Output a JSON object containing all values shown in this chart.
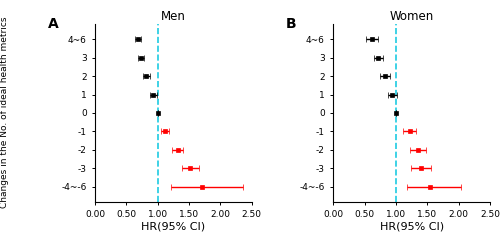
{
  "men": {
    "title": "Men",
    "label": "A",
    "y_positions": [
      4,
      3,
      2,
      1,
      0,
      -1,
      -2,
      -3,
      -4
    ],
    "hr": [
      0.68,
      0.73,
      0.82,
      0.93,
      1.0,
      1.12,
      1.32,
      1.52,
      1.7
    ],
    "hr_lo": [
      0.63,
      0.68,
      0.76,
      0.87,
      1.0,
      1.06,
      1.23,
      1.38,
      1.22
    ],
    "hr_hi": [
      0.73,
      0.78,
      0.88,
      0.99,
      1.0,
      1.18,
      1.41,
      1.66,
      2.36
    ],
    "colors": [
      "black",
      "black",
      "black",
      "black",
      "black",
      "red",
      "red",
      "red",
      "red"
    ]
  },
  "women": {
    "title": "Women",
    "label": "B",
    "y_positions": [
      4,
      3,
      2,
      1,
      0,
      -1,
      -2,
      -3,
      -4
    ],
    "hr": [
      0.62,
      0.72,
      0.82,
      0.94,
      1.0,
      1.22,
      1.35,
      1.4,
      1.55
    ],
    "hr_lo": [
      0.52,
      0.65,
      0.74,
      0.87,
      1.0,
      1.12,
      1.22,
      1.24,
      1.18
    ],
    "hr_hi": [
      0.72,
      0.79,
      0.9,
      1.01,
      1.0,
      1.32,
      1.48,
      1.56,
      2.04
    ],
    "colors": [
      "black",
      "black",
      "black",
      "black",
      "black",
      "red",
      "red",
      "red",
      "red"
    ]
  },
  "xlabel": "HR(95% CI)",
  "ylabel": "Changes in the No. of ideal health metrics",
  "xlim": [
    0.0,
    2.5
  ],
  "xticks": [
    0.0,
    0.5,
    1.0,
    1.5,
    2.0,
    2.5
  ],
  "xticklabels": [
    "0.00",
    "0.50",
    "1.00",
    "1.50",
    "2.00",
    "2.50"
  ],
  "ytick_vals": [
    -4,
    -3,
    -2,
    -1,
    0,
    1,
    2,
    3,
    4
  ],
  "ytick_labels": [
    "-4~-6",
    "-3",
    "-2",
    "-1",
    "0",
    "1",
    "2",
    "3",
    "4~6"
  ],
  "ylim": [
    -4.8,
    4.8
  ],
  "dashed_x": 1.0,
  "dashed_color": "#1ECBE1",
  "marker": "s",
  "markersize": 3.5,
  "capsize": 2.0,
  "elinewidth": 1.0,
  "background_color": "#ffffff",
  "title_fontsize": 8.5,
  "xlabel_fontsize": 8,
  "ylabel_fontsize": 6.5,
  "tick_fontsize": 6.5,
  "panel_label_fontsize": 10
}
